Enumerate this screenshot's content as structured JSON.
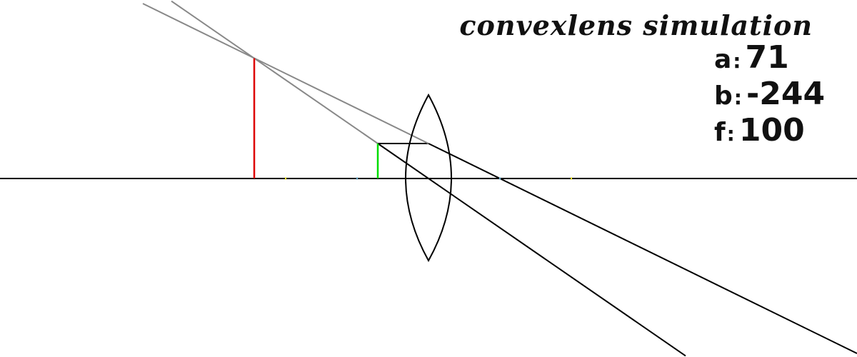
{
  "title": "convexlens simulation",
  "params": [
    {
      "key": "a",
      "value": "71"
    },
    {
      "key": "b",
      "value": "-244"
    },
    {
      "key": "f",
      "value": "100"
    }
  ],
  "colors": {
    "axis": "#000000",
    "lens": "#000000",
    "object": "#00dd00",
    "image": "#dd0000",
    "virtual_ray": "#888888",
    "real_ray": "#000000",
    "focal_mark": "#e8e020",
    "double_focal_mark": "#66aacc"
  },
  "optics": {
    "object_distance_a": 71,
    "image_distance_b": -244,
    "focal_length_f": 100,
    "object_height": 49
  }
}
